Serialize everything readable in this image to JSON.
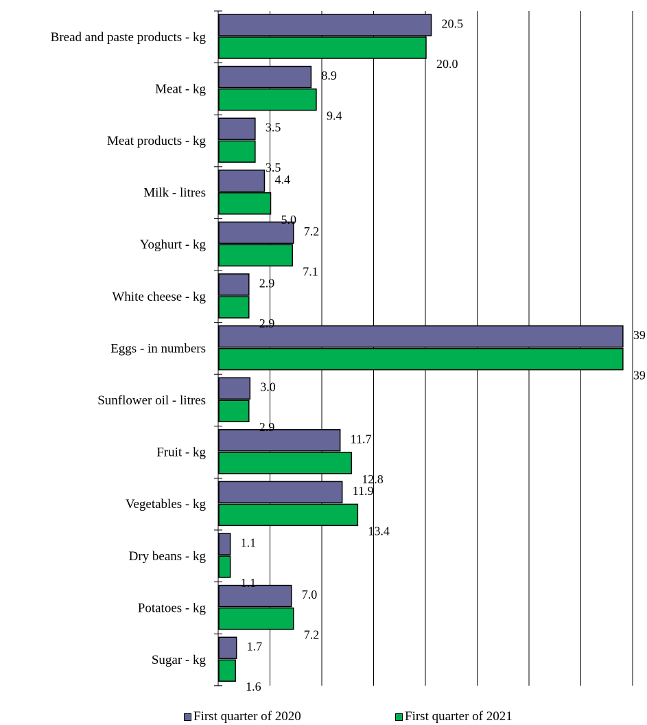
{
  "chart_data": {
    "type": "bar",
    "orientation": "horizontal",
    "categories": [
      "Bread and paste products - kg",
      "Meat - kg",
      "Meat products - kg",
      "Milk - litres",
      "Yoghurt - kg",
      "White cheese  - kg",
      "Eggs - in numbers",
      "Sunflower oil - litres",
      "Fruit - kg",
      "Vegetables - kg",
      "Dry beans - kg",
      "Potatoes - kg",
      "Sugar - kg"
    ],
    "series": [
      {
        "name": "First  quarter of 2020",
        "color": "#666699",
        "values": [
          20.5,
          8.9,
          3.5,
          4.4,
          7.2,
          2.9,
          39,
          3.0,
          11.7,
          11.9,
          1.1,
          7.0,
          1.7
        ],
        "labels": [
          "20.5",
          "8.9",
          "3.5",
          "4.4",
          "7.2",
          "2.9",
          "39",
          "3.0",
          "11.7",
          "11.9",
          "1.1",
          "7.0",
          "1.7"
        ]
      },
      {
        "name": "First quarter of 2021",
        "color": "#00B050",
        "values": [
          20.0,
          9.4,
          3.5,
          5.0,
          7.1,
          2.9,
          39,
          2.9,
          12.8,
          13.4,
          1.1,
          7.2,
          1.6
        ],
        "labels": [
          "20.0",
          "9.4",
          "3.5",
          "5.0",
          "7.1",
          "2.9",
          "39",
          "2.9",
          "12.8",
          "13.4",
          "1.1",
          "7.2",
          "1.6"
        ]
      }
    ],
    "xlim": [
      0,
      40
    ],
    "grid": true,
    "legend_position": "bottom"
  }
}
